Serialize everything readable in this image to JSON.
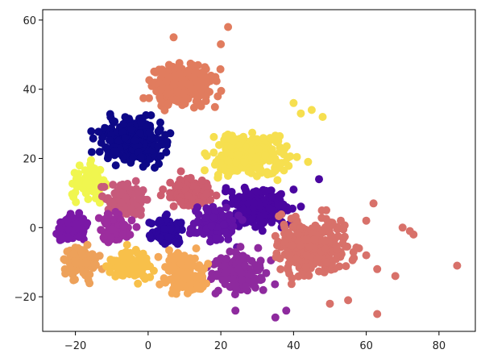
{
  "chart_data": {
    "type": "scatter",
    "title": "",
    "xlabel": "",
    "ylabel": "",
    "xlim": [
      -29,
      90
    ],
    "ylim": [
      -30,
      63
    ],
    "grid": false,
    "legend": "none",
    "x_ticks": [
      -20,
      0,
      20,
      40,
      60,
      80
    ],
    "y_ticks": [
      -20,
      0,
      20,
      40,
      60
    ],
    "x_tick_labels": [
      "−20",
      "0",
      "20",
      "40",
      "60",
      "80"
    ],
    "y_tick_labels": [
      "−20",
      "0",
      "20",
      "40",
      "60"
    ],
    "clusters": [
      {
        "color": "#0d0887",
        "center": [
          -4,
          25
        ],
        "spread": [
          8,
          5.5
        ],
        "count": 260
      },
      {
        "color": "#e17c5e",
        "center": [
          9,
          41
        ],
        "spread": [
          8,
          5.5
        ],
        "count": 220
      },
      {
        "color": "#f6df4f",
        "center": [
          28,
          21
        ],
        "spread": [
          9,
          6
        ],
        "count": 230
      },
      {
        "color": "#f0f64f",
        "center": [
          -16,
          13
        ],
        "spread": [
          4,
          4
        ],
        "count": 110
      },
      {
        "color": "#c75a7b",
        "center": [
          -6,
          8
        ],
        "spread": [
          5,
          4
        ],
        "count": 110
      },
      {
        "color": "#cd5d6f",
        "center": [
          11,
          10
        ],
        "spread": [
          5,
          4
        ],
        "count": 120
      },
      {
        "color": "#4a06a0",
        "center": [
          30,
          6
        ],
        "spread": [
          8,
          5
        ],
        "count": 200
      },
      {
        "color": "#7a18a6",
        "center": [
          -21,
          0
        ],
        "spread": [
          3.5,
          3.5
        ],
        "count": 90
      },
      {
        "color": "#9c2d9e",
        "center": [
          -9,
          0
        ],
        "spread": [
          4,
          3.5
        ],
        "count": 90
      },
      {
        "color": "#2e079d",
        "center": [
          5,
          -1
        ],
        "spread": [
          4,
          3.5
        ],
        "count": 90
      },
      {
        "color": "#6313a6",
        "center": [
          18,
          1
        ],
        "spread": [
          5,
          4
        ],
        "count": 110
      },
      {
        "color": "#8e2a9e",
        "center": [
          25,
          -13
        ],
        "spread": [
          6,
          5
        ],
        "count": 150
      },
      {
        "color": "#d8716a",
        "center": [
          45,
          -5
        ],
        "spread": [
          9,
          8
        ],
        "count": 260
      },
      {
        "color": "#eda15a",
        "center": [
          -18,
          -10
        ],
        "spread": [
          4,
          4
        ],
        "count": 110
      },
      {
        "color": "#f8c04a",
        "center": [
          -5,
          -11
        ],
        "spread": [
          5,
          4
        ],
        "count": 120
      },
      {
        "color": "#f4a858",
        "center": [
          10,
          -13
        ],
        "spread": [
          5,
          5
        ],
        "count": 130
      }
    ],
    "outliers": [
      [
        85,
        -11
      ],
      [
        72,
        -1
      ],
      [
        73,
        -2
      ],
      [
        70,
        0
      ],
      [
        63,
        -25
      ],
      [
        68,
        -14
      ],
      [
        62,
        7
      ],
      [
        58,
        -6
      ],
      [
        60,
        2
      ],
      [
        22,
        58
      ],
      [
        7,
        55
      ],
      [
        20,
        53
      ],
      [
        48,
        32
      ],
      [
        42,
        33
      ],
      [
        40,
        36
      ],
      [
        45,
        34
      ],
      [
        44,
        19
      ],
      [
        47,
        14
      ],
      [
        50,
        -22
      ],
      [
        55,
        -21
      ],
      [
        60,
        -8
      ],
      [
        40,
        11
      ],
      [
        38,
        -24
      ],
      [
        35,
        -26
      ],
      [
        24,
        -24
      ],
      [
        49,
        5
      ],
      [
        53,
        2
      ],
      [
        63,
        -12
      ]
    ]
  }
}
